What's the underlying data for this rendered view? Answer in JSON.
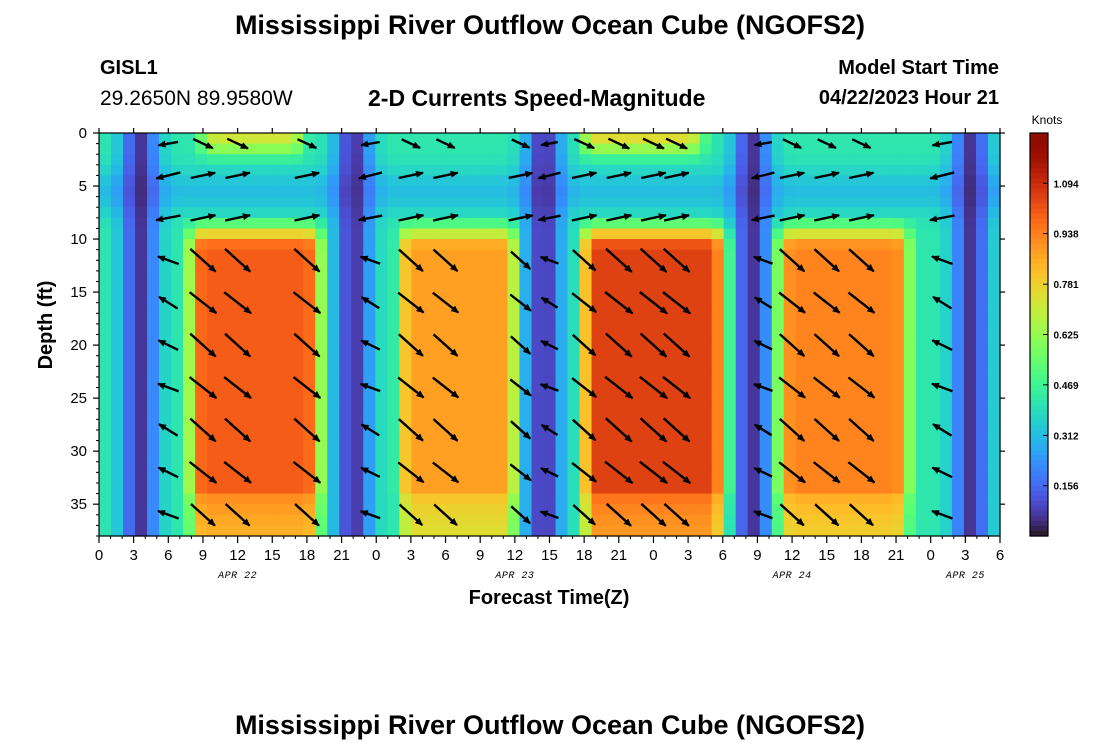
{
  "header": {
    "title": "Mississippi River Outflow Ocean Cube (NGOFS2)",
    "station_id": "GISL1",
    "station_coords": "29.2650N  89.9580W",
    "plot_subtitle": "2-D Currents Speed-Magnitude",
    "model_start_label": "Model Start Time",
    "model_start_value": "04/22/2023 Hour 21"
  },
  "footer": {
    "title": "Mississippi River Outflow Ocean Cube (NGOFS2)"
  },
  "chart_data": {
    "type": "heatmap",
    "title": "2-D Currents Speed-Magnitude",
    "xlabel": "Forecast Time(Z)",
    "ylabel": "Depth (ft)",
    "colorbar_label": "Knots",
    "colorbar_ticks": [
      "1.094",
      "0.938",
      "0.781",
      "0.625",
      "0.469",
      "0.312",
      "0.156"
    ],
    "colorbar_values": [
      1.094,
      0.938,
      0.781,
      0.625,
      0.469,
      0.312,
      0.156
    ],
    "colorbar_range": [
      0,
      1.25
    ],
    "x_range_hours": [
      0,
      78
    ],
    "x_tick_labels": [
      "0",
      "3",
      "6",
      "9",
      "12",
      "15",
      "18",
      "21",
      "0",
      "3",
      "6",
      "9",
      "12",
      "15",
      "18",
      "21",
      "0",
      "3",
      "6",
      "9",
      "12",
      "15",
      "18",
      "21",
      "0",
      "3",
      "6"
    ],
    "date_labels": [
      {
        "label": "APR 22",
        "hour": 12
      },
      {
        "label": "APR 23",
        "hour": 36
      },
      {
        "label": "APR 24",
        "hour": 60
      },
      {
        "label": "APR 25",
        "hour": 75
      }
    ],
    "y_range_ft": [
      0,
      38
    ],
    "y_reversed": true,
    "y_tick_labels": [
      "0",
      "5",
      "10",
      "15",
      "20",
      "25",
      "30",
      "35"
    ],
    "y_tick_values": [
      0,
      5,
      10,
      15,
      20,
      25,
      30,
      35
    ],
    "bottom_layer_phases": [
      {
        "start_hour": 7.5,
        "end_hour": 19.5,
        "peak": 1.0
      },
      {
        "start_hour": 25.5,
        "end_hour": 36.5,
        "peak": 0.88
      },
      {
        "start_hour": 41.5,
        "end_hour": 54.5,
        "peak": 1.05
      },
      {
        "start_hour": 58.5,
        "end_hour": 70.5,
        "peak": 0.93
      }
    ],
    "surface_layer_phases": [
      {
        "start_hour": 8,
        "end_hour": 18.5,
        "peak": 0.72
      },
      {
        "start_hour": 41,
        "end_hour": 53,
        "peak": 0.75
      }
    ],
    "slack_hours": [
      3.5,
      22,
      38.5,
      56.5,
      75.5
    ],
    "vector_depths_ft": [
      1,
      4,
      8,
      12,
      16,
      20,
      24,
      28,
      32,
      36
    ],
    "vector_hours": [
      6,
      9,
      12,
      18,
      23.5,
      27,
      30,
      36.5,
      39,
      42,
      45,
      48,
      50,
      57.5,
      60,
      63,
      66,
      73
    ]
  }
}
